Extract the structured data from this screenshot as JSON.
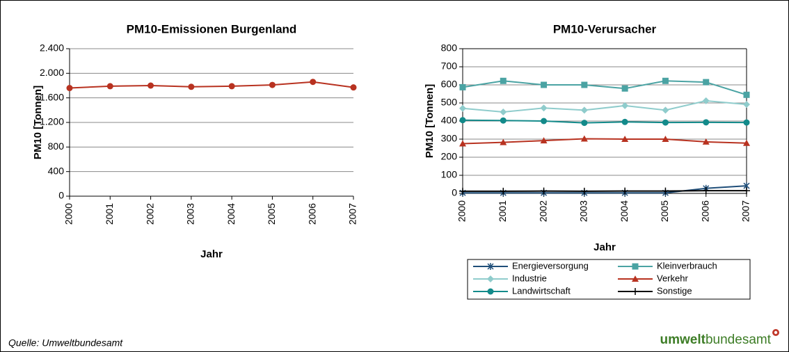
{
  "chart_data": [
    {
      "type": "line",
      "title": "PM10-Emissionen Burgenland",
      "y_label": "PM10 [Tonnen]",
      "x_label": "Jahr",
      "categories": [
        "2000",
        "2001",
        "2002",
        "2003",
        "2004",
        "2005",
        "2006",
        "2007"
      ],
      "series": [
        {
          "name": "PM10-Emissionen",
          "color": "#b83220",
          "marker": "circle",
          "values": [
            1760,
            1790,
            1800,
            1780,
            1790,
            1810,
            1860,
            1770
          ]
        }
      ],
      "ylim": [
        0,
        2400
      ],
      "yticks": [
        0,
        400,
        800,
        {
          "value": 1200,
          "label": "1.200"
        },
        {
          "value": 1600,
          "label": "1.600"
        },
        {
          "value": 2000,
          "label": "2.000"
        },
        {
          "value": 2400,
          "label": "2.400"
        }
      ],
      "grid": true
    },
    {
      "type": "line",
      "title": "PM10-Verursacher",
      "y_label": "PM10 [Tonnen]",
      "x_label": "Jahr",
      "categories": [
        "2000",
        "2001",
        "2002",
        "2003",
        "2004",
        "2005",
        "2006",
        "2007"
      ],
      "series": [
        {
          "name": "Energieversorgung",
          "color": "#1f4e79",
          "marker": "star",
          "values": [
            3,
            3,
            3,
            3,
            3,
            3,
            28,
            42
          ]
        },
        {
          "name": "Kleinverbrauch",
          "color": "#4aa3a3",
          "marker": "square",
          "values": [
            587,
            622,
            600,
            600,
            580,
            622,
            615,
            545
          ]
        },
        {
          "name": "Industrie",
          "color": "#8fcccc",
          "marker": "diamond",
          "values": [
            470,
            450,
            472,
            460,
            485,
            460,
            512,
            492
          ]
        },
        {
          "name": "Verkehr",
          "color": "#b83220",
          "marker": "triangle",
          "values": [
            275,
            282,
            292,
            302,
            300,
            300,
            285,
            278
          ]
        },
        {
          "name": "Landwirtschaft",
          "color": "#138a8a",
          "marker": "circle",
          "values": [
            405,
            403,
            400,
            390,
            395,
            392,
            393,
            392
          ]
        },
        {
          "name": "Sonstige",
          "color": "#000000",
          "marker": "plus",
          "values": [
            12,
            12,
            13,
            12,
            13,
            13,
            15,
            15
          ]
        }
      ],
      "ylim": [
        0,
        800
      ],
      "yticks": [
        0,
        100,
        200,
        300,
        400,
        500,
        600,
        700,
        800
      ],
      "grid": true,
      "legend": "bottom"
    }
  ],
  "source": "Quelle: Umweltbundesamt",
  "logo": {
    "bold": "umwelt",
    "regular": "bundesamt"
  }
}
